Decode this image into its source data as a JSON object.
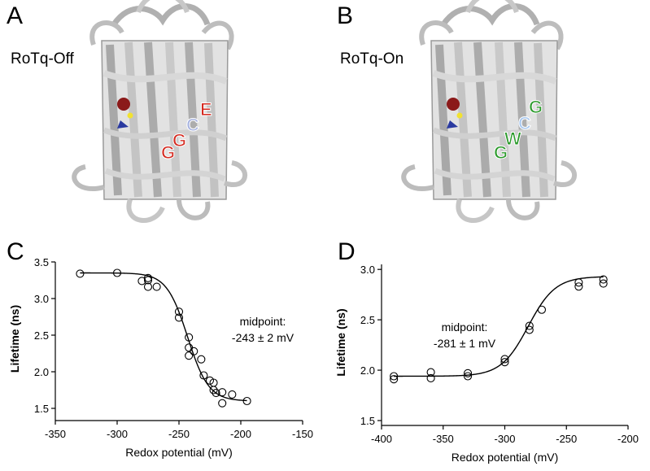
{
  "panels": {
    "a": {
      "letter": "A",
      "label": "RoTq-Off",
      "residues": [
        "G",
        "G",
        "C",
        "E"
      ],
      "residue_colors": [
        "#d42a20",
        "#d42a20",
        "#a8b4e0",
        "#d42a20"
      ]
    },
    "b": {
      "letter": "B",
      "label": "RoTq-On",
      "residues": [
        "G",
        "W",
        "C",
        "G"
      ],
      "residue_colors": [
        "#2a9a2a",
        "#2a9a2a",
        "#a8c8f0",
        "#2a9a2a"
      ]
    },
    "c": {
      "letter": "C"
    },
    "d": {
      "letter": "D"
    }
  },
  "protein_color": "#c8c8c8",
  "chart_data": [
    {
      "type": "scatter",
      "panel": "C",
      "xlabel": "Redox potential (mV)",
      "ylabel": "Lifetime (ns)",
      "xlim": [
        -350,
        -150
      ],
      "ylim": [
        1.4,
        3.5
      ],
      "xticks": [
        -350,
        -300,
        -250,
        -200,
        -150
      ],
      "yticks": [
        1.5,
        2.0,
        2.5,
        3.0,
        3.5
      ],
      "xtick_labels": [
        "-350",
        "-300",
        "-250",
        "-200",
        "-150"
      ],
      "ytick_labels": [
        "1.5",
        "2.0",
        "2.5",
        "3.0",
        "3.5"
      ],
      "annotation": [
        "midpoint:",
        "-243 ± 2 mV"
      ],
      "points": [
        [
          -330,
          3.34
        ],
        [
          -300,
          3.35
        ],
        [
          -280,
          3.24
        ],
        [
          -275,
          3.28
        ],
        [
          -275,
          3.25
        ],
        [
          -275,
          3.16
        ],
        [
          -268,
          3.16
        ],
        [
          -250,
          2.82
        ],
        [
          -250,
          2.74
        ],
        [
          -242,
          2.47
        ],
        [
          -242,
          2.33
        ],
        [
          -242,
          2.22
        ],
        [
          -238,
          2.28
        ],
        [
          -232,
          2.17
        ],
        [
          -230,
          1.95
        ],
        [
          -225,
          1.88
        ],
        [
          -222,
          1.85
        ],
        [
          -222,
          1.75
        ],
        [
          -220,
          1.71
        ],
        [
          -215,
          1.72
        ],
        [
          -215,
          1.57
        ],
        [
          -207,
          1.69
        ],
        [
          -195,
          1.6
        ]
      ],
      "fit": {
        "top": 3.35,
        "bottom": 1.6,
        "midpoint": -243,
        "slope": 8.5
      }
    },
    {
      "type": "scatter",
      "panel": "D",
      "xlabel": "Redox potential (mV)",
      "ylabel": "Lifetime (ns)",
      "xlim": [
        -400,
        -200
      ],
      "ylim": [
        1.5,
        3.05
      ],
      "xticks": [
        -400,
        -350,
        -300,
        -250,
        -200
      ],
      "yticks": [
        1.5,
        2.0,
        2.5,
        3.0
      ],
      "xtick_labels": [
        "-400",
        "-350",
        "-300",
        "-250",
        "-200"
      ],
      "ytick_labels": [
        "1.5",
        "2.0",
        "2.5",
        "3.0"
      ],
      "annotation": [
        "midpoint:",
        "-281 ± 1 mV"
      ],
      "points": [
        [
          -390,
          1.94
        ],
        [
          -390,
          1.91
        ],
        [
          -360,
          1.98
        ],
        [
          -360,
          1.92
        ],
        [
          -330,
          1.97
        ],
        [
          -330,
          1.94
        ],
        [
          -300,
          2.11
        ],
        [
          -300,
          2.08
        ],
        [
          -280,
          2.44
        ],
        [
          -280,
          2.4
        ],
        [
          -270,
          2.6
        ],
        [
          -240,
          2.87
        ],
        [
          -240,
          2.83
        ],
        [
          -220,
          2.9
        ],
        [
          -220,
          2.86
        ]
      ],
      "fit": {
        "top": 2.93,
        "bottom": 1.94,
        "midpoint": -281,
        "slope": 11
      }
    }
  ]
}
